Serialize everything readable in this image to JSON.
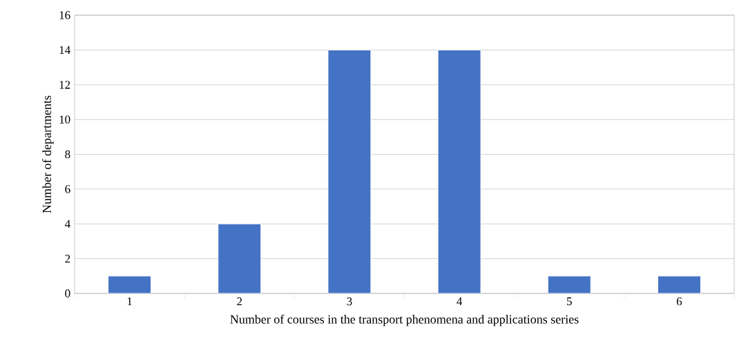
{
  "chart_data": {
    "type": "bar",
    "xlabel": "Number of courses in the transport phenomena and applications series",
    "ylabel": "Number of departments",
    "categories": [
      "1",
      "2",
      "3",
      "4",
      "5",
      "6"
    ],
    "values": [
      1,
      4,
      14,
      14,
      1,
      1
    ],
    "color": "#4472c4",
    "ylim": [
      0,
      16
    ],
    "yticks": [
      0,
      2,
      4,
      6,
      8,
      10,
      12,
      14,
      16
    ],
    "grid": "y"
  }
}
